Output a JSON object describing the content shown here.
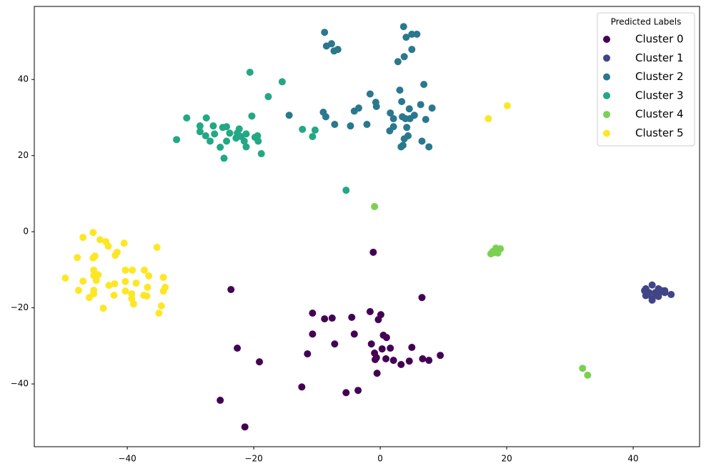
{
  "chart_data": {
    "type": "scatter",
    "legend_title": "Predicted Labels",
    "legend_loc": "upper right",
    "grid": false,
    "xlim": [
      -54.7,
      50.5
    ],
    "ylim": [
      -56.5,
      59.2
    ],
    "xticks": [
      {
        "value": -40,
        "label": "−40"
      },
      {
        "value": -20,
        "label": "−20"
      },
      0,
      20,
      40
    ],
    "yticks": [
      {
        "value": -40,
        "label": "−40"
      },
      {
        "value": -20,
        "label": "−20"
      },
      0,
      20,
      40
    ],
    "series": [
      {
        "name": "Cluster 0",
        "color": "#440154",
        "x": [
          -1.1,
          6.6,
          -23.6,
          -10.7,
          -8.8,
          -7.6,
          -4.5,
          -1.6,
          0.1,
          -0.3,
          -22.6,
          -11.5,
          -10.7,
          -7.2,
          -4.1,
          -1.4,
          -0.9,
          -0.6,
          0.5,
          1.0,
          0.3,
          1.6,
          0.9,
          2.1,
          3.3,
          4.6,
          5.0,
          6.7,
          7.7,
          9.5,
          -19.1,
          -0.5,
          -12.4,
          -5.4,
          -3.5,
          -25.3,
          -21.4,
          -0.8
        ],
        "y": [
          -5.4,
          -17.3,
          -15.2,
          -21.4,
          -22.9,
          -22.7,
          -22.5,
          -21,
          -21.8,
          -23.1,
          -30.6,
          -32.1,
          -26.9,
          -29.5,
          -26.9,
          -29.5,
          -31.9,
          -33.1,
          -27.2,
          -27.8,
          -30.8,
          -30.6,
          -33.4,
          -33.8,
          -34.9,
          -34,
          -30.4,
          -33.4,
          -33.8,
          -32.5,
          -34.2,
          -37.2,
          -40.8,
          -42.3,
          -41.7,
          -44.3,
          -51.3,
          -33.6
        ]
      },
      {
        "name": "Cluster 1",
        "color": "#414487",
        "x": [
          42,
          43,
          44,
          45,
          46,
          42,
          43,
          44,
          43.5,
          44.5,
          42.5,
          43,
          45,
          41.8,
          44
        ],
        "y": [
          -15,
          -14,
          -15,
          -16,
          -16.5,
          -16.8,
          -17.5,
          -17,
          -16,
          -15.5,
          -16,
          -18,
          -15.5,
          -15.5,
          -16.5
        ]
      },
      {
        "name": "Cluster 2",
        "color": "#2a788e",
        "x": [
          -8.8,
          3.7,
          4.1,
          5.0,
          5.8,
          -8.5,
          -7.7,
          -7.3,
          -6.7,
          5.0,
          3.8,
          2.8,
          6.9,
          3.1,
          -1.6,
          -0.7,
          -0.6,
          -3.4,
          -4.1,
          -9.0,
          -8.6,
          -14.4,
          3.4,
          1.6,
          4.6,
          5.4,
          3.5,
          4.0,
          4.7,
          6.4,
          8.2,
          7.2,
          2.1,
          2.1,
          1.5,
          4.2,
          4.4,
          3.8,
          -4.7,
          -2.1,
          -7.2,
          6.6,
          7.7,
          3.3,
          3.6
        ],
        "y": [
          52.4,
          53.9,
          51.1,
          51.9,
          51.9,
          48.8,
          49.4,
          47.5,
          47.9,
          47.9,
          46.0,
          44.7,
          38.7,
          37.2,
          36.2,
          34,
          32.9,
          32.5,
          31.7,
          31.4,
          30.2,
          30.6,
          34.2,
          31.2,
          32.3,
          30.6,
          30.2,
          29.7,
          29.7,
          33.4,
          32.5,
          29.5,
          29.7,
          27.6,
          26.5,
          27.4,
          25.2,
          24.4,
          27.8,
          28.2,
          28.2,
          23.8,
          22.3,
          22.3,
          22.7
        ]
      },
      {
        "name": "Cluster 3",
        "color": "#22a884",
        "x": [
          -20.6,
          -15.5,
          -17.7,
          -20.3,
          -30.6,
          -27.5,
          -28.5,
          -26.4,
          -24.9,
          -24.3,
          -22.3,
          -28.5,
          -27.6,
          -26.2,
          -23.8,
          -22.6,
          -21.2,
          -22.0,
          -22.8,
          -19.8,
          -19.4,
          -19.3,
          -21.5,
          -21.2,
          -24.3,
          -26.9,
          -32.2,
          -25.3,
          -24.7,
          -18.8,
          -12.3,
          -10.3,
          -10.7,
          -5.4
        ],
        "y": [
          41.9,
          39.4,
          35.5,
          30.4,
          29.9,
          29.9,
          27.8,
          27.8,
          27.4,
          27.6,
          27,
          26.3,
          25.2,
          25.7,
          25.9,
          25.9,
          25.7,
          25,
          24.6,
          24.8,
          25.2,
          23.8,
          23.8,
          22.3,
          23.8,
          23.8,
          24.2,
          22.2,
          19.3,
          20.5,
          26.9,
          26.7,
          25,
          10.9
        ]
      },
      {
        "name": "Cluster 4",
        "color": "#7ad151",
        "x": [
          -0.9,
          17.5,
          18,
          18.5,
          19,
          18.3,
          17.8,
          18.6,
          32.0,
          32.8
        ],
        "y": [
          6.6,
          -5.8,
          -5.5,
          -5,
          -4.5,
          -4.3,
          -5.2,
          -5.6,
          -35.9,
          -37.7
        ]
      },
      {
        "name": "Cluster 5",
        "color": "#fde725",
        "x": [
          17.1,
          20.1,
          -45.4,
          -47,
          -44.3,
          -43.4,
          -43,
          -40.5,
          -41.6,
          -41.9,
          -47.9,
          -45.4,
          -45.1,
          -35.3,
          -49.8,
          -47,
          -45.3,
          -45.3,
          -44.6,
          -44.9,
          -40.3,
          -39.2,
          -37.3,
          -36.6,
          -34.3,
          -40.3,
          -38.6,
          -42.9,
          -42,
          -47.7,
          -45.3,
          -45.3,
          -40.3,
          -39.3,
          -36.8,
          -34.0,
          -34.3,
          -37.4,
          -36.9,
          -42.1,
          -46,
          -39.3,
          -39,
          -34.6,
          -35,
          -43.8
        ],
        "y": [
          29.7,
          33.1,
          -0.2,
          -1.5,
          -2.1,
          -2.6,
          -3.8,
          -3,
          -5.4,
          -6.2,
          -6.8,
          -6.9,
          -6.4,
          -4.1,
          -12.2,
          -13,
          -10.1,
          -11.5,
          -11.3,
          -12.8,
          -10.1,
          -10.1,
          -10.1,
          -11.6,
          -12,
          -13.1,
          -13.5,
          -14.1,
          -13.7,
          -15.4,
          -15.4,
          -16.3,
          -15.6,
          -16.3,
          -14.6,
          -14.6,
          -15.6,
          -16.7,
          -16.9,
          -16.7,
          -17.3,
          -17.6,
          -19,
          -19.5,
          -21.4,
          -20.1
        ]
      }
    ]
  }
}
